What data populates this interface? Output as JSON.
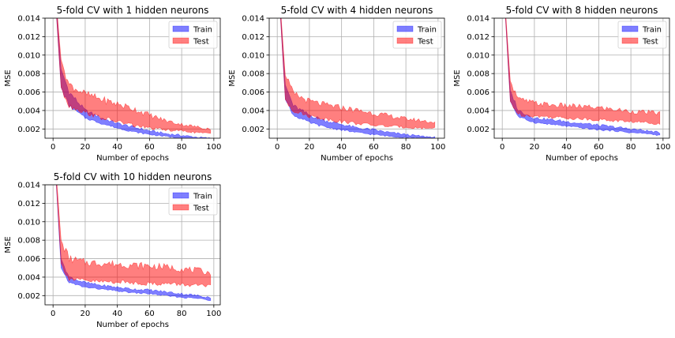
{
  "chart_data": [
    {
      "type": "area",
      "title": "5-fold CV with 1 hidden neurons",
      "xlabel": "Number of epochs",
      "ylabel": "MSE",
      "xlim": [
        -5,
        104
      ],
      "ylim": [
        0.001,
        0.014
      ],
      "xticks": [
        "0",
        "20",
        "40",
        "60",
        "80",
        "100"
      ],
      "yticks": [
        "0.002",
        "0.004",
        "0.006",
        "0.008",
        "0.010",
        "0.012",
        "0.014"
      ],
      "grid": true,
      "legend_position": "top-right",
      "x": [
        0,
        5,
        10,
        20,
        30,
        40,
        50,
        60,
        70,
        80,
        90,
        98
      ],
      "series": [
        {
          "name": "Train",
          "color": "#0000ff",
          "lower": [
            0.02,
            0.0065,
            0.0045,
            0.0032,
            0.0026,
            0.0021,
            0.0017,
            0.0014,
            0.0012,
            0.001,
            0.0009,
            0.0009
          ],
          "upper": [
            0.02,
            0.0085,
            0.006,
            0.004,
            0.0032,
            0.0026,
            0.0022,
            0.0018,
            0.0015,
            0.0013,
            0.0011,
            0.001
          ]
        },
        {
          "name": "Test",
          "color": "#ff0000",
          "lower": [
            0.02,
            0.0065,
            0.0045,
            0.0038,
            0.0032,
            0.0028,
            0.0024,
            0.0021,
            0.0019,
            0.0018,
            0.0016,
            0.0015
          ],
          "upper": [
            0.02,
            0.0095,
            0.0068,
            0.0058,
            0.0052,
            0.0047,
            0.0042,
            0.0035,
            0.0029,
            0.0025,
            0.0022,
            0.002
          ]
        }
      ]
    },
    {
      "type": "area",
      "title": "5-fold CV with 4 hidden neurons",
      "xlabel": "Number of epochs",
      "ylabel": "MSE",
      "xlim": [
        -5,
        104
      ],
      "ylim": [
        0.001,
        0.014
      ],
      "xticks": [
        "0",
        "20",
        "40",
        "60",
        "80",
        "100"
      ],
      "yticks": [
        "0.002",
        "0.004",
        "0.006",
        "0.008",
        "0.010",
        "0.012",
        "0.014"
      ],
      "grid": true,
      "legend_position": "top-right",
      "x": [
        0,
        5,
        10,
        20,
        30,
        40,
        50,
        60,
        70,
        80,
        90,
        98
      ],
      "series": [
        {
          "name": "Train",
          "color": "#0000ff",
          "lower": [
            0.02,
            0.0052,
            0.0035,
            0.0027,
            0.0022,
            0.0019,
            0.0016,
            0.0014,
            0.0012,
            0.0011,
            0.001,
            0.0009
          ],
          "upper": [
            0.02,
            0.0068,
            0.0045,
            0.0035,
            0.0029,
            0.0025,
            0.0021,
            0.0019,
            0.0016,
            0.0014,
            0.0012,
            0.0011
          ]
        },
        {
          "name": "Test",
          "color": "#ff0000",
          "lower": [
            0.02,
            0.0052,
            0.004,
            0.0034,
            0.0031,
            0.0028,
            0.0026,
            0.0024,
            0.0023,
            0.0022,
            0.0021,
            0.0021
          ],
          "upper": [
            0.02,
            0.0078,
            0.0058,
            0.005,
            0.0046,
            0.0043,
            0.004,
            0.0037,
            0.0034,
            0.0031,
            0.0029,
            0.0027
          ]
        }
      ]
    },
    {
      "type": "area",
      "title": "5-fold CV with 8 hidden neurons",
      "xlabel": "Number of epochs",
      "ylabel": "MSE",
      "xlim": [
        -5,
        104
      ],
      "ylim": [
        0.001,
        0.014
      ],
      "xticks": [
        "0",
        "20",
        "40",
        "60",
        "80",
        "100"
      ],
      "yticks": [
        "0.002",
        "0.004",
        "0.006",
        "0.008",
        "0.010",
        "0.012",
        "0.014"
      ],
      "grid": true,
      "legend_position": "top-right",
      "x": [
        0,
        5,
        10,
        20,
        30,
        40,
        50,
        60,
        70,
        80,
        90,
        98
      ],
      "series": [
        {
          "name": "Train",
          "color": "#0000ff",
          "lower": [
            0.02,
            0.005,
            0.0033,
            0.0027,
            0.0025,
            0.0023,
            0.0021,
            0.0019,
            0.0018,
            0.0016,
            0.0015,
            0.0013
          ],
          "upper": [
            0.02,
            0.0062,
            0.004,
            0.0032,
            0.003,
            0.0028,
            0.0026,
            0.0024,
            0.0022,
            0.002,
            0.0018,
            0.0016
          ]
        },
        {
          "name": "Test",
          "color": "#ff0000",
          "lower": [
            0.02,
            0.005,
            0.0036,
            0.0034,
            0.0033,
            0.0032,
            0.0031,
            0.003,
            0.0029,
            0.0028,
            0.0027,
            0.0026
          ],
          "upper": [
            0.02,
            0.0072,
            0.0052,
            0.0048,
            0.0046,
            0.0045,
            0.0044,
            0.0043,
            0.0041,
            0.0039,
            0.0038,
            0.0037
          ]
        }
      ]
    },
    {
      "type": "area",
      "title": "5-fold CV with 10 hidden neurons",
      "xlabel": "Number of epochs",
      "ylabel": "MSE",
      "xlim": [
        -5,
        104
      ],
      "ylim": [
        0.001,
        0.014
      ],
      "xticks": [
        "0",
        "20",
        "40",
        "60",
        "80",
        "100"
      ],
      "yticks": [
        "0.002",
        "0.004",
        "0.006",
        "0.008",
        "0.010",
        "0.012",
        "0.014"
      ],
      "grid": true,
      "legend_position": "top-right",
      "x": [
        0,
        5,
        10,
        20,
        30,
        40,
        50,
        60,
        70,
        80,
        90,
        98
      ],
      "series": [
        {
          "name": "Train",
          "color": "#0000ff",
          "lower": [
            0.02,
            0.005,
            0.0034,
            0.0029,
            0.0027,
            0.0025,
            0.0023,
            0.0022,
            0.002,
            0.0018,
            0.0017,
            0.0015
          ],
          "upper": [
            0.02,
            0.006,
            0.004,
            0.0034,
            0.0031,
            0.0029,
            0.0027,
            0.0026,
            0.0024,
            0.0022,
            0.002,
            0.0018
          ]
        },
        {
          "name": "Test",
          "color": "#ff0000",
          "lower": [
            0.02,
            0.0055,
            0.0038,
            0.0036,
            0.0035,
            0.0035,
            0.0034,
            0.0033,
            0.0033,
            0.0032,
            0.0031,
            0.003
          ],
          "upper": [
            0.02,
            0.008,
            0.006,
            0.0056,
            0.0055,
            0.0054,
            0.0053,
            0.0052,
            0.0051,
            0.0049,
            0.0047,
            0.0045
          ]
        }
      ]
    }
  ]
}
